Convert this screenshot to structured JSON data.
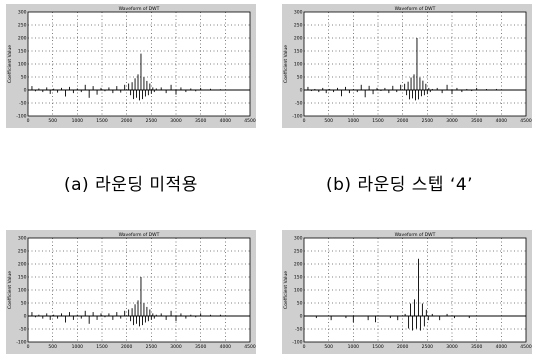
{
  "figure": {
    "captions": {
      "a": "(a) 라운딩 미적용",
      "b": "(b) 라운딩 스텝 ‘4’"
    }
  },
  "colors": {
    "frame": "#cfcfcf",
    "plot_background": "#ffffff",
    "stem": "#000000"
  },
  "chart_data": [
    {
      "id": "a",
      "type": "line",
      "style": "stem",
      "title": "Waveform of DWT",
      "xlabel": "",
      "ylabel": "Coefficient Value",
      "xlim": [
        0,
        4500
      ],
      "ylim": [
        -100,
        300
      ],
      "xticks": [
        "0",
        "500",
        "1000",
        "1500",
        "2000",
        "2500",
        "3000",
        "3500",
        "4000",
        "4500"
      ],
      "yticks": [
        "-100",
        "-50",
        "0",
        "50",
        "100",
        "150",
        "200",
        "250",
        "300"
      ],
      "grid": true,
      "series": [
        {
          "x": [
            80,
            150,
            220,
            300,
            380,
            450,
            520,
            600,
            680,
            760,
            840,
            920,
            1000,
            1080,
            1160,
            1240,
            1320,
            1400,
            1480,
            1560,
            1640,
            1720,
            1800,
            1880,
            1960,
            2040,
            2080,
            2110,
            2140,
            2170,
            2200,
            2230,
            2260,
            2290,
            2320,
            2350,
            2380,
            2410,
            2440,
            2470,
            2500,
            2530,
            2560,
            2600,
            2700,
            2800,
            2900,
            3000,
            3100,
            3200,
            3300,
            3400,
            3500,
            3700,
            3900
          ],
          "values": [
            15,
            -5,
            6,
            -8,
            10,
            -15,
            5,
            -10,
            8,
            -25,
            12,
            -12,
            6,
            -8,
            20,
            -30,
            15,
            -18,
            8,
            -5,
            10,
            -12,
            15,
            -10,
            20,
            25,
            -20,
            30,
            -35,
            45,
            -30,
            60,
            -40,
            140,
            -35,
            50,
            -25,
            35,
            -20,
            25,
            -15,
            10,
            -8,
            6,
            10,
            -12,
            20,
            -18,
            10,
            -8,
            6,
            -5,
            8,
            5,
            3
          ]
        }
      ]
    },
    {
      "id": "b",
      "type": "line",
      "style": "stem",
      "title": "Waveform of DWT",
      "xlabel": "",
      "ylabel": "Coefficient Value",
      "xlim": [
        0,
        4500
      ],
      "ylim": [
        -100,
        300
      ],
      "xticks": [
        "0",
        "500",
        "1000",
        "1500",
        "2000",
        "2500",
        "3000",
        "3500",
        "4000",
        "4500"
      ],
      "yticks": [
        "-100",
        "-50",
        "0",
        "50",
        "100",
        "150",
        "200",
        "250",
        "300"
      ],
      "grid": true,
      "series": [
        {
          "x": [
            80,
            150,
            220,
            300,
            380,
            450,
            520,
            600,
            680,
            760,
            840,
            920,
            1000,
            1080,
            1160,
            1240,
            1320,
            1400,
            1480,
            1560,
            1640,
            1720,
            1800,
            1880,
            1960,
            2040,
            2080,
            2110,
            2140,
            2170,
            2200,
            2230,
            2260,
            2290,
            2320,
            2350,
            2380,
            2410,
            2440,
            2470,
            2500,
            2530,
            2560,
            2600,
            2700,
            2800,
            2900,
            3000,
            3100,
            3200,
            3300,
            3400,
            3500,
            3700,
            3900
          ],
          "values": [
            12,
            -4,
            4,
            -8,
            8,
            -12,
            4,
            -8,
            8,
            -24,
            12,
            -12,
            4,
            -8,
            20,
            -28,
            16,
            -16,
            8,
            -4,
            8,
            -12,
            16,
            -8,
            20,
            24,
            -20,
            32,
            -36,
            48,
            -32,
            60,
            -40,
            200,
            -36,
            48,
            -24,
            36,
            -20,
            24,
            -16,
            8,
            -8,
            4,
            8,
            -12,
            20,
            -16,
            8,
            -8,
            4,
            -4,
            8,
            4,
            4
          ]
        }
      ]
    },
    {
      "id": "c",
      "type": "line",
      "style": "stem",
      "title": "Waveform of DWT",
      "xlabel": "",
      "ylabel": "Coefficient Value",
      "xlim": [
        0,
        4500
      ],
      "ylim": [
        -100,
        300
      ],
      "xticks": [
        "0",
        "500",
        "1000",
        "1500",
        "2000",
        "2500",
        "3000",
        "3500",
        "4000",
        "4500"
      ],
      "yticks": [
        "-100",
        "-50",
        "0",
        "50",
        "100",
        "150",
        "200",
        "250",
        "300"
      ],
      "grid": true,
      "series": [
        {
          "x": [
            80,
            150,
            220,
            300,
            380,
            450,
            520,
            600,
            680,
            760,
            840,
            920,
            1000,
            1080,
            1160,
            1240,
            1320,
            1400,
            1480,
            1560,
            1640,
            1720,
            1800,
            1880,
            1960,
            2040,
            2080,
            2110,
            2140,
            2170,
            2200,
            2230,
            2260,
            2290,
            2320,
            2350,
            2380,
            2410,
            2440,
            2470,
            2500,
            2530,
            2560,
            2600,
            2700,
            2800,
            2900,
            3000,
            3100,
            3200,
            3300,
            3400,
            3500,
            3700,
            3900
          ],
          "values": [
            15,
            -5,
            5,
            -10,
            10,
            -15,
            5,
            -10,
            10,
            -25,
            15,
            -15,
            5,
            -10,
            20,
            -30,
            15,
            -15,
            10,
            -5,
            10,
            -15,
            15,
            -10,
            20,
            25,
            -20,
            30,
            -35,
            45,
            -30,
            60,
            -40,
            150,
            -35,
            50,
            -25,
            35,
            -20,
            25,
            -15,
            10,
            -10,
            5,
            10,
            -15,
            20,
            -20,
            10,
            -10,
            5,
            -5,
            10,
            5,
            5
          ]
        }
      ]
    },
    {
      "id": "d",
      "type": "line",
      "style": "stem",
      "title": "Waveform of DWT",
      "xlabel": "",
      "ylabel": "Coefficient Value",
      "xlim": [
        0,
        4500
      ],
      "ylim": [
        -100,
        300
      ],
      "xticks": [
        "0",
        "500",
        "1000",
        "1500",
        "2000",
        "2500",
        "3000",
        "3500",
        "4000",
        "4500"
      ],
      "yticks": [
        "-100",
        "-50",
        "0",
        "50",
        "100",
        "150",
        "200",
        "250",
        "300"
      ],
      "grid": true,
      "series": [
        {
          "x": [
            100,
            250,
            400,
            550,
            700,
            850,
            1000,
            1150,
            1300,
            1450,
            1600,
            1750,
            1900,
            2050,
            2120,
            2160,
            2200,
            2240,
            2280,
            2320,
            2360,
            2400,
            2440,
            2480,
            2520,
            2600,
            2750,
            2900,
            3050,
            3200,
            3350,
            3500,
            3700,
            3900
          ],
          "values": [
            0,
            -8,
            0,
            -16,
            0,
            -8,
            -24,
            0,
            -16,
            -24,
            0,
            -8,
            -16,
            8,
            -48,
            48,
            -56,
            64,
            -48,
            220,
            -56,
            48,
            -40,
            24,
            -16,
            8,
            -16,
            8,
            -8,
            0,
            -8,
            0,
            0,
            0
          ]
        }
      ]
    }
  ]
}
